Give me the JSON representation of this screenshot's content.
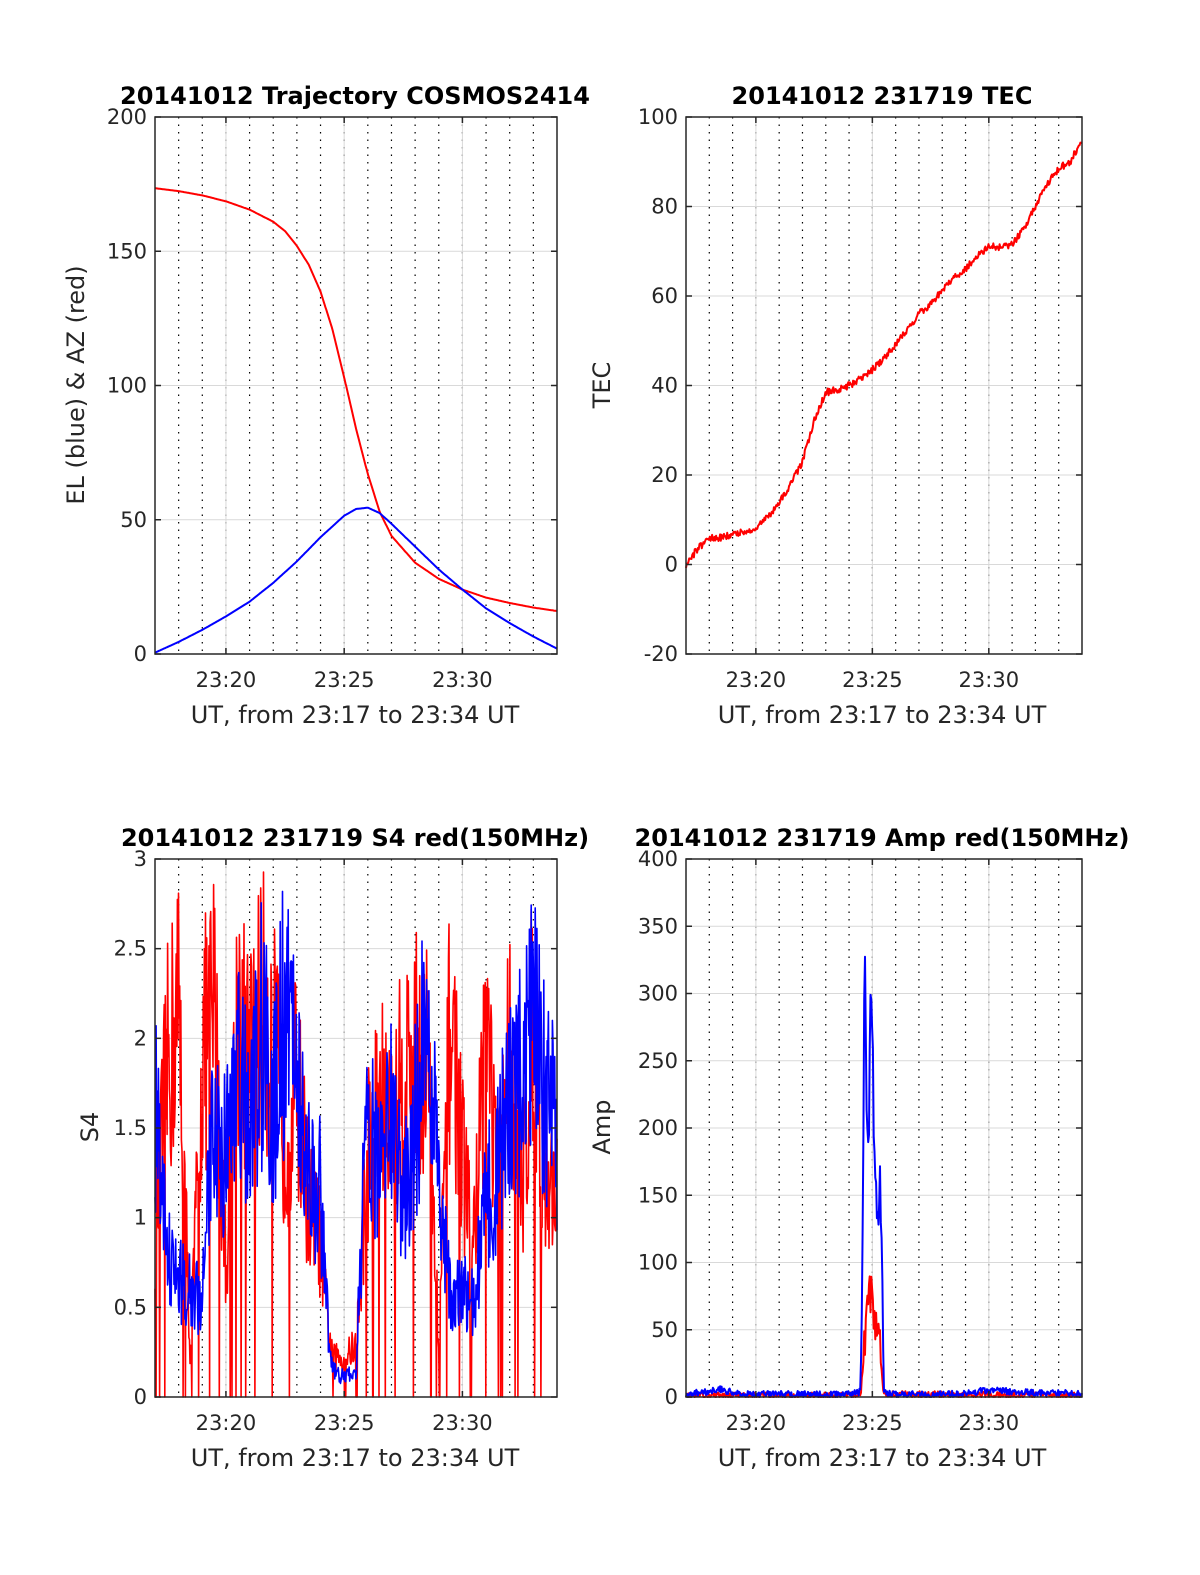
{
  "figure": {
    "colors": {
      "red": "#ff0000",
      "blue": "#0000ff",
      "grid": "#d9d9d9",
      "axis": "#262626"
    }
  },
  "chart_data": [
    {
      "type": "line",
      "title": "20141012 Trajectory COSMOS2414",
      "xlabel": "UT, from 23:17 to 23:34 UT",
      "ylabel": "EL (blue) & AZ (red)",
      "xlim": [
        "23:17",
        "23:34"
      ],
      "ylim": [
        0,
        200
      ],
      "x_ticks": [
        "23:20",
        "23:25",
        "23:30"
      ],
      "y_ticks": [
        "0",
        "50",
        "100",
        "150",
        "200"
      ],
      "grid": true,
      "minor_time_grid": "dotted, every minute",
      "series": [
        {
          "color": "#ff0000",
          "points": [
            [
              "23:17",
              173.5
            ],
            [
              "23:18",
              172.4
            ],
            [
              "23:19",
              170.8
            ],
            [
              "23:20",
              168.6
            ],
            [
              "23:21",
              165.5
            ],
            [
              "23:22",
              161
            ],
            [
              "23:22:30",
              157.5
            ],
            [
              "23:23",
              152
            ],
            [
              "23:23:30",
              145
            ],
            [
              "23:24",
              135
            ],
            [
              "23:24:30",
              121
            ],
            [
              "23:25",
              103
            ],
            [
              "23:25:30",
              84
            ],
            [
              "23:26",
              67
            ],
            [
              "23:26:30",
              53
            ],
            [
              "23:27",
              44
            ],
            [
              "23:28",
              34
            ],
            [
              "23:29",
              28
            ],
            [
              "23:30",
              24
            ],
            [
              "23:31",
              21
            ],
            [
              "23:32",
              19
            ],
            [
              "23:33",
              17.3
            ],
            [
              "23:34",
              16
            ]
          ]
        },
        {
          "color": "#0000ff",
          "points": [
            [
              "23:17",
              0.5
            ],
            [
              "23:18",
              4.5
            ],
            [
              "23:19",
              9
            ],
            [
              "23:20",
              14
            ],
            [
              "23:21",
              19.5
            ],
            [
              "23:22",
              26.5
            ],
            [
              "23:23",
              34.5
            ],
            [
              "23:24",
              43.5
            ],
            [
              "23:25",
              51.5
            ],
            [
              "23:25:30",
              54
            ],
            [
              "23:26",
              54.5
            ],
            [
              "23:26:30",
              52.5
            ],
            [
              "23:27",
              48.5
            ],
            [
              "23:28",
              40
            ],
            [
              "23:29",
              31.5
            ],
            [
              "23:30",
              24
            ],
            [
              "23:31",
              17
            ],
            [
              "23:32",
              11.5
            ],
            [
              "23:33",
              6.5
            ],
            [
              "23:34",
              2
            ]
          ]
        }
      ]
    },
    {
      "type": "line",
      "title": "20141012 231719 TEC",
      "xlabel": "UT, from 23:17 to 23:34 UT",
      "ylabel": "TEC",
      "xlim": [
        "23:17",
        "23:34"
      ],
      "ylim": [
        -20,
        100
      ],
      "x_ticks": [
        "23:20",
        "23:25",
        "23:30"
      ],
      "y_ticks": [
        "-20",
        "0",
        "20",
        "40",
        "60",
        "80",
        "100"
      ],
      "grid": true,
      "minor_time_grid": "dotted, every minute",
      "series": [
        {
          "color": "#ff0000",
          "points": [
            [
              "23:17",
              0
            ],
            [
              "23:17:30",
              3.5
            ],
            [
              "23:18",
              6
            ],
            [
              "23:18:30",
              6
            ],
            [
              "23:19",
              6.8
            ],
            [
              "23:19:30",
              7.2
            ],
            [
              "23:20",
              8.2
            ],
            [
              "23:20:30",
              10.5
            ],
            [
              "23:21",
              14
            ],
            [
              "23:21:30",
              18
            ],
            [
              "23:22",
              23
            ],
            [
              "23:22:30",
              32
            ],
            [
              "23:23",
              38.5
            ],
            [
              "23:23:30",
              39
            ],
            [
              "23:24",
              40
            ],
            [
              "23:24:30",
              41.5
            ],
            [
              "23:25",
              43.5
            ],
            [
              "23:25:30",
              46
            ],
            [
              "23:26",
              49
            ],
            [
              "23:26:30",
              52.5
            ],
            [
              "23:27",
              56
            ],
            [
              "23:27:30",
              58
            ],
            [
              "23:28",
              61.5
            ],
            [
              "23:28:30",
              64
            ],
            [
              "23:29",
              66
            ],
            [
              "23:29:30",
              69
            ],
            [
              "23:30",
              71
            ],
            [
              "23:30:30",
              71
            ],
            [
              "23:31",
              71.5
            ],
            [
              "23:31:30",
              75
            ],
            [
              "23:32",
              80
            ],
            [
              "23:32:30",
              85
            ],
            [
              "23:33",
              88.5
            ],
            [
              "23:33:30",
              90
            ],
            [
              "23:34",
              95
            ]
          ]
        }
      ]
    },
    {
      "type": "line",
      "title": "20141012 231719 S4 red(150MHz)",
      "xlabel": "UT, from 23:17 to 23:34 UT",
      "ylabel": "S4",
      "xlim": [
        "23:17",
        "23:34"
      ],
      "ylim": [
        0,
        3
      ],
      "x_ticks": [
        "23:20",
        "23:25",
        "23:30"
      ],
      "y_ticks": [
        "0",
        "0.5",
        "1",
        "1.5",
        "2",
        "2.5",
        "3"
      ],
      "grid": true,
      "minor_time_grid": "dotted, every minute",
      "series": [
        {
          "color": "#ff0000",
          "note_points": "envelope",
          "points": [
            [
              "23:17",
              1.2
            ],
            [
              "23:17:30",
              2.5
            ],
            [
              "23:18",
              3
            ],
            [
              "23:18:30",
              0.3
            ],
            [
              "23:19",
              2.6
            ],
            [
              "23:19:30",
              3
            ],
            [
              "23:20",
              1
            ],
            [
              "23:20:30",
              3
            ],
            [
              "23:21",
              2.5
            ],
            [
              "23:21:30",
              3
            ],
            [
              "23:22",
              2.7
            ],
            [
              "23:22:30",
              2
            ],
            [
              "23:23",
              2.4
            ],
            [
              "23:23:30",
              1.5
            ],
            [
              "23:24",
              1.2
            ],
            [
              "23:24:15",
              0.65
            ],
            [
              "23:24:30",
              0.3
            ],
            [
              "23:25",
              0.3
            ],
            [
              "23:25:30",
              0.4
            ],
            [
              "23:25:45",
              1.1
            ],
            [
              "23:26",
              1.9
            ],
            [
              "23:26:30",
              2.3
            ],
            [
              "23:27",
              2
            ],
            [
              "23:27:30",
              2.5
            ],
            [
              "23:28",
              2.6
            ],
            [
              "23:28:30",
              2.7
            ],
            [
              "23:29",
              0.4
            ],
            [
              "23:29:30",
              3
            ],
            [
              "23:30",
              1.8
            ],
            [
              "23:30:30",
              1.2
            ],
            [
              "23:31",
              3
            ],
            [
              "23:31:30",
              1.5
            ],
            [
              "23:32",
              2.8
            ],
            [
              "23:32:30",
              1.5
            ],
            [
              "23:33",
              3
            ],
            [
              "23:33:30",
              1.6
            ],
            [
              "23:34",
              1.6
            ]
          ]
        },
        {
          "color": "#0000ff",
          "note_points": "envelope",
          "points": [
            [
              "23:17",
              2.2
            ],
            [
              "23:17:15",
              1.7
            ],
            [
              "23:17:30",
              1.1
            ],
            [
              "23:18",
              0.9
            ],
            [
              "23:18:30",
              0.8
            ],
            [
              "23:19",
              0.75
            ],
            [
              "23:19:15",
              1.5
            ],
            [
              "23:19:30",
              2.2
            ],
            [
              "23:20",
              1.8
            ],
            [
              "23:20:30",
              2.9
            ],
            [
              "23:21",
              2
            ],
            [
              "23:21:30",
              2.8
            ],
            [
              "23:22",
              2.3
            ],
            [
              "23:22:30",
              3
            ],
            [
              "23:23",
              2.5
            ],
            [
              "23:23:30",
              1.7
            ],
            [
              "23:24",
              1.6
            ],
            [
              "23:24:15",
              0.7
            ],
            [
              "23:24:30",
              0.2
            ],
            [
              "23:25",
              0.15
            ],
            [
              "23:25:30",
              0.2
            ],
            [
              "23:25:45",
              1.3
            ],
            [
              "23:26",
              2.1
            ],
            [
              "23:26:30",
              1.6
            ],
            [
              "23:27",
              2.4
            ],
            [
              "23:27:30",
              1.5
            ],
            [
              "23:28",
              2.1
            ],
            [
              "23:28:30",
              2.9
            ],
            [
              "23:29",
              1.5
            ],
            [
              "23:29:30",
              0.75
            ],
            [
              "23:30",
              0.8
            ],
            [
              "23:30:30",
              0.75
            ],
            [
              "23:31",
              1.5
            ],
            [
              "23:31:30",
              1.8
            ],
            [
              "23:32",
              2.2
            ],
            [
              "23:32:30",
              2.5
            ],
            [
              "23:33",
              2.8
            ],
            [
              "23:33:30",
              2.4
            ],
            [
              "23:34",
              2
            ]
          ]
        }
      ]
    },
    {
      "type": "line",
      "title": "20141012 231719 Amp red(150MHz)",
      "xlabel": "UT, from 23:17 to 23:34 UT",
      "ylabel": "Amp",
      "xlim": [
        "23:17",
        "23:34"
      ],
      "ylim": [
        0,
        400
      ],
      "x_ticks": [
        "23:20",
        "23:25",
        "23:30"
      ],
      "y_ticks": [
        "0",
        "50",
        "100",
        "150",
        "200",
        "250",
        "300",
        "350",
        "400"
      ],
      "grid": true,
      "minor_time_grid": "dotted, every minute",
      "series": [
        {
          "color": "#ff0000",
          "points": [
            [
              "23:17",
              1
            ],
            [
              "23:24:30",
              1
            ],
            [
              "23:24:40",
              40
            ],
            [
              "23:24:50",
              70
            ],
            [
              "23:25",
              85
            ],
            [
              "23:25:05",
              55
            ],
            [
              "23:25:10",
              60
            ],
            [
              "23:25:15",
              45
            ],
            [
              "23:25:20",
              35
            ],
            [
              "23:25:25",
              15
            ],
            [
              "23:25:30",
              2
            ],
            [
              "23:34",
              1
            ]
          ]
        },
        {
          "color": "#0000ff",
          "points": [
            [
              "23:17",
              2
            ],
            [
              "23:18",
              4
            ],
            [
              "23:18:30",
              6
            ],
            [
              "23:19",
              3
            ],
            [
              "23:20",
              2
            ],
            [
              "23:21",
              2
            ],
            [
              "23:22",
              2
            ],
            [
              "23:23",
              2
            ],
            [
              "23:24",
              2
            ],
            [
              "23:24:25",
              3
            ],
            [
              "23:24:30",
              5
            ],
            [
              "23:24:35",
              120
            ],
            [
              "23:24:40",
              345
            ],
            [
              "23:24:45",
              220
            ],
            [
              "23:24:50",
              180
            ],
            [
              "23:24:55",
              285
            ],
            [
              "23:25",
              280
            ],
            [
              "23:25:05",
              170
            ],
            [
              "23:25:10",
              150
            ],
            [
              "23:25:15",
              120
            ],
            [
              "23:25:20",
              175
            ],
            [
              "23:25:25",
              90
            ],
            [
              "23:25:30",
              3
            ],
            [
              "23:26",
              2
            ],
            [
              "23:27",
              2
            ],
            [
              "23:28",
              2
            ],
            [
              "23:29",
              3
            ],
            [
              "23:30",
              5
            ],
            [
              "23:31",
              4
            ],
            [
              "23:32",
              3
            ],
            [
              "23:33",
              3
            ],
            [
              "23:34",
              2
            ]
          ]
        }
      ]
    }
  ]
}
